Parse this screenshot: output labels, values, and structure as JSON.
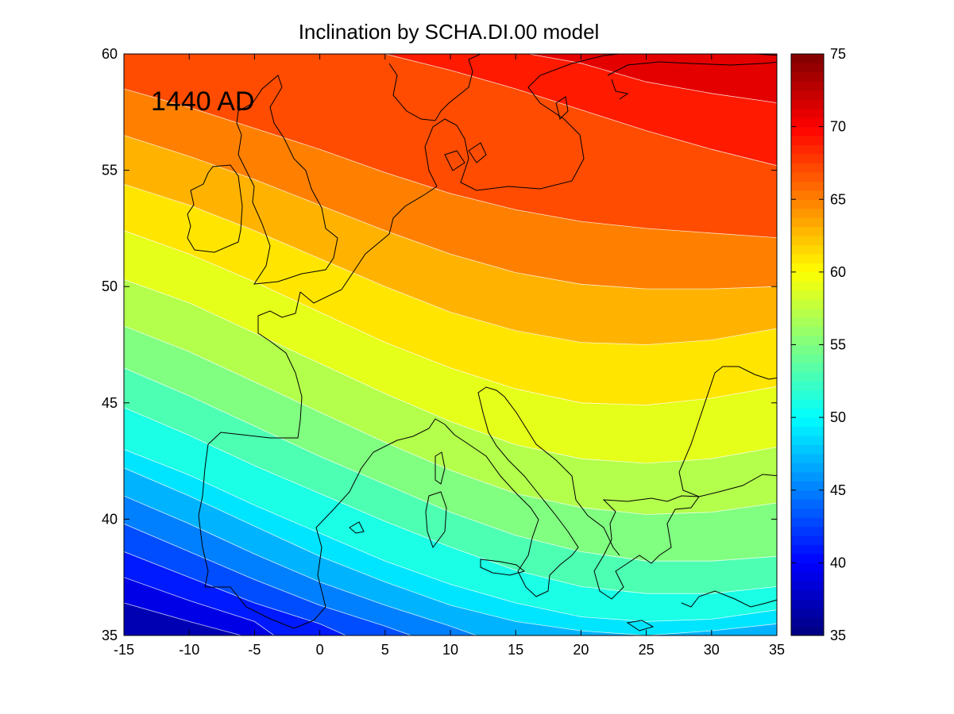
{
  "chart_data": {
    "type": "heatmap",
    "title": "Inclination by SCHA.DI.00 model",
    "annotation": "1440 AD",
    "xlabel": "",
    "ylabel": "",
    "xlim": [
      -15,
      35
    ],
    "ylim": [
      35,
      60
    ],
    "x_ticks": [
      "-15",
      "-10",
      "-5",
      "0",
      "5",
      "10",
      "15",
      "20",
      "25",
      "30",
      "35"
    ],
    "y_ticks": [
      "35",
      "40",
      "45",
      "50",
      "55",
      "60"
    ],
    "colorbar": {
      "range": [
        35,
        75
      ],
      "ticks": [
        "35",
        "40",
        "45",
        "50",
        "55",
        "60",
        "65",
        "70",
        "75"
      ],
      "colormap": "jet"
    },
    "contour_interval": 2,
    "contours": [
      {
        "level": 38,
        "points": [
          [
            -15,
            36.4
          ],
          [
            -10,
            35.6
          ],
          [
            -6,
            35
          ]
        ]
      },
      {
        "level": 40,
        "points": [
          [
            -15,
            37.5
          ],
          [
            -10,
            36.5
          ],
          [
            -5,
            35.6
          ],
          [
            -3.5,
            35
          ]
        ]
      },
      {
        "level": 42,
        "points": [
          [
            -15,
            38.6
          ],
          [
            -10,
            37.5
          ],
          [
            -5,
            36.4
          ],
          [
            0,
            35.5
          ],
          [
            2,
            35
          ]
        ]
      },
      {
        "level": 44,
        "points": [
          [
            -15,
            39.8
          ],
          [
            -10,
            38.6
          ],
          [
            -5,
            37.4
          ],
          [
            0,
            36.3
          ],
          [
            5,
            35.4
          ],
          [
            7,
            35
          ]
        ]
      },
      {
        "level": 46,
        "points": [
          [
            -15,
            41.0
          ],
          [
            -10,
            39.8
          ],
          [
            -5,
            38.5
          ],
          [
            0,
            37.3
          ],
          [
            5,
            36.3
          ],
          [
            10,
            35.4
          ],
          [
            12,
            35
          ]
        ]
      },
      {
        "level": 48,
        "points": [
          [
            -15,
            42.2
          ],
          [
            -10,
            41.0
          ],
          [
            -5,
            39.7
          ],
          [
            0,
            38.4
          ],
          [
            5,
            37.3
          ],
          [
            10,
            36.3
          ],
          [
            15,
            35.6
          ],
          [
            20,
            35.2
          ],
          [
            25,
            35.0
          ],
          [
            30,
            35.2
          ],
          [
            35,
            35.5
          ]
        ]
      },
      {
        "level": 50,
        "points": [
          [
            -15,
            43.0
          ],
          [
            -10,
            41.9
          ],
          [
            -5,
            40.6
          ],
          [
            0,
            39.4
          ],
          [
            5,
            38.2
          ],
          [
            10,
            37.2
          ],
          [
            15,
            36.4
          ],
          [
            20,
            35.8
          ],
          [
            25,
            35.6
          ],
          [
            30,
            35.7
          ],
          [
            35,
            36.1
          ]
        ]
      },
      {
        "level": 52,
        "points": [
          [
            -15,
            44.8
          ],
          [
            -10,
            43.6
          ],
          [
            -5,
            42.3
          ],
          [
            0,
            41.1
          ],
          [
            5,
            39.9
          ],
          [
            10,
            38.8
          ],
          [
            15,
            37.8
          ],
          [
            20,
            37.1
          ],
          [
            25,
            36.8
          ],
          [
            30,
            36.8
          ],
          [
            35,
            37.1
          ]
        ]
      },
      {
        "level": 54,
        "points": [
          [
            -15,
            46.5
          ],
          [
            -10,
            45.3
          ],
          [
            -5,
            44.0
          ],
          [
            0,
            42.7
          ],
          [
            5,
            41.5
          ],
          [
            10,
            40.3
          ],
          [
            15,
            39.3
          ],
          [
            20,
            38.6
          ],
          [
            25,
            38.2
          ],
          [
            30,
            38.2
          ],
          [
            35,
            38.4
          ]
        ]
      },
      {
        "level": 56,
        "points": [
          [
            -15,
            48.3
          ],
          [
            -10,
            47.2
          ],
          [
            -5,
            45.9
          ],
          [
            0,
            44.6
          ],
          [
            5,
            43.3
          ],
          [
            10,
            42.1
          ],
          [
            15,
            41.1
          ],
          [
            20,
            40.5
          ],
          [
            25,
            40.2
          ],
          [
            30,
            40.3
          ],
          [
            35,
            40.7
          ]
        ]
      },
      {
        "level": 58,
        "points": [
          [
            -15,
            50.3
          ],
          [
            -10,
            49.3
          ],
          [
            -5,
            48.0
          ],
          [
            0,
            46.7
          ],
          [
            5,
            45.4
          ],
          [
            10,
            44.2
          ],
          [
            15,
            43.2
          ],
          [
            20,
            42.6
          ],
          [
            25,
            42.4
          ],
          [
            30,
            42.6
          ],
          [
            35,
            43.1
          ]
        ]
      },
      {
        "level": 60,
        "points": [
          [
            -15,
            52.4
          ],
          [
            -10,
            51.4
          ],
          [
            -5,
            50.2
          ],
          [
            0,
            48.9
          ],
          [
            5,
            47.6
          ],
          [
            10,
            46.5
          ],
          [
            15,
            45.6
          ],
          [
            20,
            45.0
          ],
          [
            25,
            44.9
          ],
          [
            30,
            45.2
          ],
          [
            35,
            45.7
          ]
        ]
      },
      {
        "level": 62,
        "points": [
          [
            -15,
            54.4
          ],
          [
            -10,
            53.5
          ],
          [
            -5,
            52.4
          ],
          [
            0,
            51.2
          ],
          [
            5,
            50.0
          ],
          [
            10,
            48.9
          ],
          [
            15,
            48.1
          ],
          [
            20,
            47.6
          ],
          [
            25,
            47.5
          ],
          [
            30,
            47.7
          ],
          [
            35,
            48.2
          ]
        ]
      },
      {
        "level": 64,
        "points": [
          [
            -15,
            56.5
          ],
          [
            -10,
            55.6
          ],
          [
            -5,
            54.6
          ],
          [
            0,
            53.5
          ],
          [
            5,
            52.4
          ],
          [
            10,
            51.4
          ],
          [
            15,
            50.6
          ],
          [
            20,
            50.1
          ],
          [
            25,
            49.9
          ],
          [
            30,
            49.9
          ],
          [
            35,
            50.0
          ]
        ]
      },
      {
        "level": 66,
        "points": [
          [
            -15,
            58.5
          ],
          [
            -10,
            57.7
          ],
          [
            -5,
            56.8
          ],
          [
            0,
            55.9
          ],
          [
            5,
            54.9
          ],
          [
            10,
            54.0
          ],
          [
            15,
            53.3
          ],
          [
            20,
            52.8
          ],
          [
            25,
            52.5
          ],
          [
            30,
            52.3
          ],
          [
            35,
            52.1
          ]
        ]
      },
      {
        "level": 68,
        "points": [
          [
            5,
            60.0
          ],
          [
            10,
            59.3
          ],
          [
            15,
            58.5
          ],
          [
            20,
            57.6
          ],
          [
            25,
            56.7
          ],
          [
            30,
            55.9
          ],
          [
            35,
            55.2
          ]
        ]
      },
      {
        "level": 70,
        "points": [
          [
            16,
            60.0
          ],
          [
            20,
            59.6
          ],
          [
            25,
            58.8
          ],
          [
            30,
            58.3
          ],
          [
            35,
            57.9
          ]
        ]
      }
    ]
  }
}
